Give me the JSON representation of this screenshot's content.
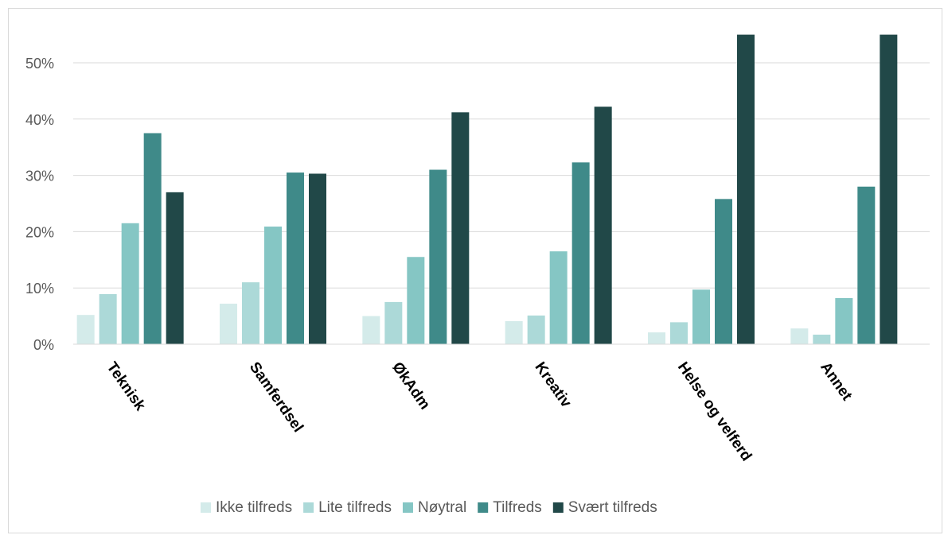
{
  "chart_data": {
    "type": "bar",
    "categories": [
      "Teknisk",
      "Samferdsel",
      "ØkAdm",
      "Kreativ",
      "Helse og velferd",
      "Annet"
    ],
    "series": [
      {
        "name": "Ikke tilfreds",
        "color": "#d4ebea",
        "values": [
          5.2,
          7.2,
          5.0,
          4.1,
          2.1,
          2.8
        ]
      },
      {
        "name": "Lite tilfreds",
        "color": "#acd9d8",
        "values": [
          8.9,
          11.0,
          7.5,
          5.1,
          3.9,
          1.7
        ]
      },
      {
        "name": "Nøytral",
        "color": "#85c6c4",
        "values": [
          21.5,
          20.9,
          15.5,
          16.5,
          9.7,
          8.2
        ]
      },
      {
        "name": "Tilfreds",
        "color": "#3f8a89",
        "values": [
          37.5,
          30.5,
          31.0,
          32.3,
          25.8,
          28.0
        ]
      },
      {
        "name": "Svært tilfreds",
        "color": "#214848",
        "values": [
          27.0,
          30.3,
          41.2,
          42.2,
          55.0,
          55.0
        ]
      }
    ],
    "y_ticks": [
      "0%",
      "10%",
      "20%",
      "30%",
      "40%",
      "50%"
    ],
    "ylim": [
      0,
      55
    ],
    "grid": true,
    "legend": "bottom",
    "title": "",
    "xlabel": "",
    "ylabel": ""
  }
}
